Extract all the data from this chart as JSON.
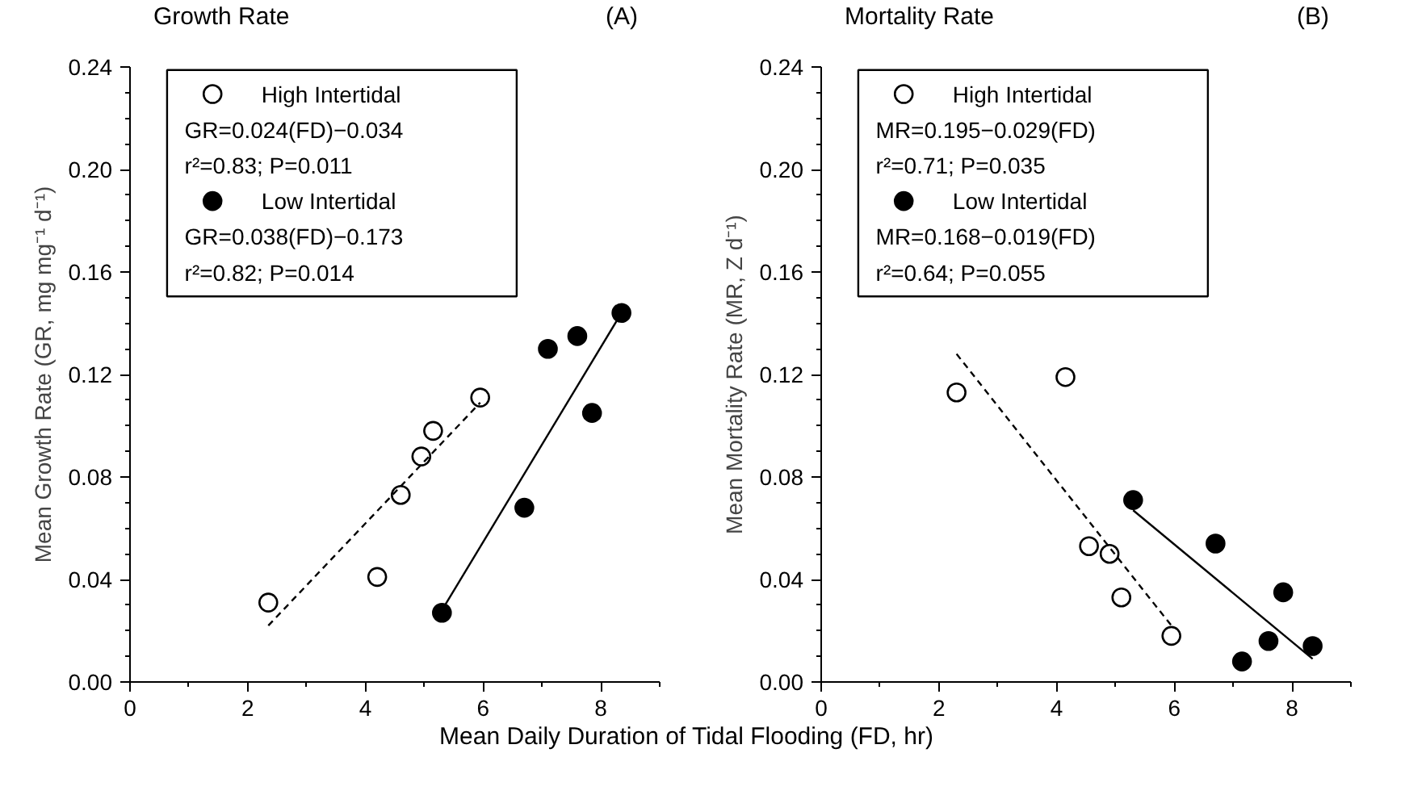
{
  "chart_data": [
    {
      "type": "scatter",
      "title": "Growth Rate",
      "subtitle": "(A)",
      "xlabel": "Mean Daily Duration of Tidal Flooding (FD, hr)",
      "ylabel": "Mean Growth Rate (GR, mg mg⁻¹ d⁻¹)",
      "xlim": [
        0,
        9
      ],
      "ylim": [
        0,
        0.24
      ],
      "xticks": [
        0,
        {
          "value": 1,
          "label": null
        },
        2,
        {
          "value": 3,
          "label": null
        },
        4,
        {
          "value": 5,
          "label": null
        },
        6,
        {
          "value": 7,
          "label": null
        },
        8,
        {
          "value": 9,
          "label": null
        }
      ],
      "yticks": [
        {
          "value": 0,
          "label": "0.00"
        },
        {
          "value": 0.01,
          "label": null
        },
        {
          "value": 0.02,
          "label": null
        },
        {
          "value": 0.03,
          "label": null
        },
        {
          "value": 0.04,
          "label": "0.04"
        },
        {
          "value": 0.05,
          "label": null
        },
        {
          "value": 0.06,
          "label": null
        },
        {
          "value": 0.07,
          "label": null
        },
        {
          "value": 0.08,
          "label": "0.08"
        },
        {
          "value": 0.09,
          "label": null
        },
        {
          "value": 0.1,
          "label": null
        },
        {
          "value": 0.11,
          "label": null
        },
        {
          "value": 0.12,
          "label": "0.12"
        },
        {
          "value": 0.13,
          "label": null
        },
        {
          "value": 0.14,
          "label": null
        },
        {
          "value": 0.15,
          "label": null
        },
        {
          "value": 0.16,
          "label": "0.16"
        },
        {
          "value": 0.17,
          "label": null
        },
        {
          "value": 0.18,
          "label": null
        },
        {
          "value": 0.19,
          "label": null
        },
        {
          "value": 0.2,
          "label": "0.20"
        },
        {
          "value": 0.21,
          "label": null
        },
        {
          "value": 0.22,
          "label": null
        },
        {
          "value": 0.23,
          "label": null
        },
        {
          "value": 0.24,
          "label": "0.24"
        }
      ],
      "grid": false,
      "legend": "top left",
      "marker": "circle",
      "annotations": [
        "GR=0.024(FD)−0.034",
        "r²=0.83; P=0.011",
        "GR=0.038(FD)−0.173",
        "r²=0.82; P=0.014"
      ],
      "series": [
        {
          "name": "High Intertidal",
          "color": "#ffffff",
          "x": [
            2.35,
            4.2,
            4.6,
            4.95,
            5.15,
            5.95
          ],
          "values": [
            0.031,
            0.041,
            0.073,
            0.088,
            0.098,
            0.111
          ]
        },
        {
          "name": "Low Intertidal",
          "color": "#000000",
          "x": [
            5.3,
            6.7,
            7.1,
            7.6,
            7.85,
            8.35
          ],
          "values": [
            0.027,
            0.068,
            0.13,
            0.135,
            0.105,
            0.144
          ]
        },
        {
          "type": "line",
          "marker": "none",
          "color": "#000000",
          "line_style": "dashed",
          "x": [
            2.35,
            5.95
          ],
          "values": [
            0.022,
            0.109
          ]
        },
        {
          "type": "line",
          "marker": "none",
          "color": "#000000",
          "line_style": "solid",
          "x": [
            5.3,
            8.35
          ],
          "values": [
            0.028,
            0.144
          ]
        }
      ]
    },
    {
      "type": "scatter",
      "title": "Mortality Rate",
      "subtitle": "(B)",
      "ylabel": "Mean Mortality Rate (MR, Z d⁻¹)",
      "xlim": [
        0,
        9
      ],
      "ylim": [
        0,
        0.24
      ],
      "xticks": [
        0,
        {
          "value": 1,
          "label": null
        },
        2,
        {
          "value": 3,
          "label": null
        },
        4,
        {
          "value": 5,
          "label": null
        },
        6,
        {
          "value": 7,
          "label": null
        },
        8,
        {
          "value": 9,
          "label": null
        }
      ],
      "yticks": [
        {
          "value": 0,
          "label": "0.00"
        },
        {
          "value": 0.01,
          "label": null
        },
        {
          "value": 0.02,
          "label": null
        },
        {
          "value": 0.03,
          "label": null
        },
        {
          "value": 0.04,
          "label": "0.04"
        },
        {
          "value": 0.05,
          "label": null
        },
        {
          "value": 0.06,
          "label": null
        },
        {
          "value": 0.07,
          "label": null
        },
        {
          "value": 0.08,
          "label": "0.08"
        },
        {
          "value": 0.09,
          "label": null
        },
        {
          "value": 0.1,
          "label": null
        },
        {
          "value": 0.11,
          "label": null
        },
        {
          "value": 0.12,
          "label": "0.12"
        },
        {
          "value": 0.13,
          "label": null
        },
        {
          "value": 0.14,
          "label": null
        },
        {
          "value": 0.15,
          "label": null
        },
        {
          "value": 0.16,
          "label": "0.16"
        },
        {
          "value": 0.17,
          "label": null
        },
        {
          "value": 0.18,
          "label": null
        },
        {
          "value": 0.19,
          "label": null
        },
        {
          "value": 0.2,
          "label": "0.20"
        },
        {
          "value": 0.21,
          "label": null
        },
        {
          "value": 0.22,
          "label": null
        },
        {
          "value": 0.23,
          "label": null
        },
        {
          "value": 0.24,
          "label": "0.24"
        }
      ],
      "grid": false,
      "legend": "top left",
      "marker": "circle",
      "annotations": [
        "MR=0.195−0.029(FD)",
        "r²=0.71; P=0.035",
        "MR=0.168−0.019(FD)",
        "r²=0.64; P=0.055"
      ],
      "series": [
        {
          "name": "High Intertidal",
          "color": "#ffffff",
          "x": [
            2.3,
            4.15,
            4.55,
            4.9,
            5.1,
            5.95
          ],
          "values": [
            0.113,
            0.119,
            0.053,
            0.05,
            0.033,
            0.018
          ]
        },
        {
          "name": "Low Intertidal",
          "color": "#000000",
          "x": [
            5.3,
            6.7,
            7.15,
            7.6,
            7.85,
            8.35
          ],
          "values": [
            0.071,
            0.054,
            0.008,
            0.016,
            0.035,
            0.014
          ]
        },
        {
          "type": "line",
          "marker": "none",
          "color": "#000000",
          "line_style": "dashed",
          "x": [
            2.3,
            5.95
          ],
          "values": [
            0.128,
            0.022
          ]
        },
        {
          "type": "line",
          "marker": "none",
          "color": "#000000",
          "line_style": "solid",
          "x": [
            5.3,
            8.35
          ],
          "values": [
            0.067,
            0.009
          ]
        }
      ]
    }
  ]
}
